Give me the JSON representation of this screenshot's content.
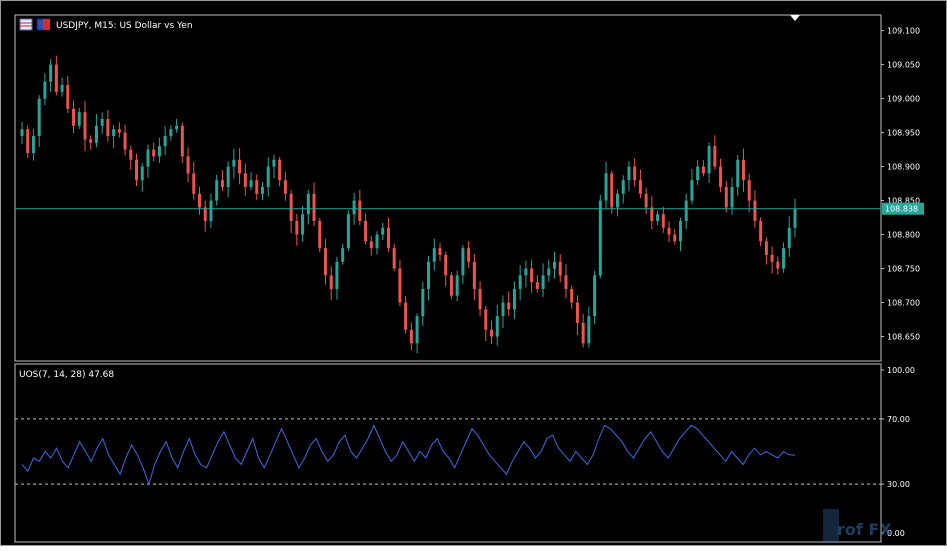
{
  "chart_data": [
    {
      "type": "candlestick",
      "title": "USDJPY, M15:  US Dollar vs Yen",
      "symbol": "USDJPY",
      "timeframe": "M15",
      "description": "US Dollar vs Yen",
      "ylim": [
        108.614,
        109.123
      ],
      "yticks": [
        109.1,
        109.05,
        109.0,
        108.95,
        108.9,
        108.85,
        108.8,
        108.75,
        108.7,
        108.65
      ],
      "ytick_labels": [
        "109.100",
        "109.050",
        "109.000",
        "108.950",
        "108.900",
        "108.850",
        "108.800",
        "108.750",
        "108.700",
        "108.650"
      ],
      "current_price": 108.838,
      "current_price_label": "108.838",
      "grid": false,
      "colors": {
        "background": "#000000",
        "bull": "#26a69a",
        "bear": "#ef5350",
        "price_line": "#26a69a",
        "axis_border": "#c0c0c0",
        "text": "#ffffff"
      },
      "closes": [
        108.955,
        108.92,
        108.945,
        109.0,
        109.025,
        109.05,
        109.01,
        109.02,
        108.985,
        108.96,
        108.98,
        108.94,
        108.935,
        108.96,
        108.97,
        108.945,
        108.955,
        108.95,
        108.925,
        108.91,
        108.88,
        108.9,
        108.925,
        108.915,
        108.93,
        108.945,
        108.955,
        108.96,
        108.915,
        108.89,
        108.86,
        108.84,
        108.82,
        108.85,
        108.88,
        108.87,
        108.9,
        108.91,
        108.89,
        108.87,
        108.88,
        108.86,
        108.87,
        108.9,
        108.91,
        108.88,
        108.86,
        108.82,
        108.8,
        108.83,
        108.86,
        108.82,
        108.78,
        108.74,
        108.72,
        108.76,
        108.78,
        108.83,
        108.85,
        108.82,
        108.79,
        108.78,
        108.8,
        108.81,
        108.78,
        108.75,
        108.7,
        108.66,
        108.64,
        108.68,
        108.72,
        108.76,
        108.78,
        108.77,
        108.74,
        108.71,
        108.74,
        108.78,
        108.76,
        108.72,
        108.69,
        108.66,
        108.65,
        108.68,
        108.7,
        108.69,
        108.72,
        108.74,
        108.75,
        108.73,
        108.72,
        108.74,
        108.75,
        108.76,
        108.74,
        108.72,
        108.7,
        108.67,
        108.64,
        108.68,
        108.74,
        108.85,
        108.89,
        108.84,
        108.86,
        108.88,
        108.9,
        108.88,
        108.86,
        108.84,
        108.82,
        108.83,
        108.81,
        108.8,
        108.79,
        108.82,
        108.85,
        108.88,
        108.9,
        108.89,
        108.93,
        108.9,
        108.87,
        108.84,
        108.87,
        108.91,
        108.88,
        108.85,
        108.82,
        108.79,
        108.77,
        108.76,
        108.75,
        108.78,
        108.81,
        108.838
      ]
    },
    {
      "type": "line",
      "title": "UOS(7, 14, 28) 47.68",
      "indicator": "UOS(7, 14, 28)",
      "last_value": 47.68,
      "ylim": [
        0,
        100
      ],
      "yticks": [
        100,
        70,
        30,
        0
      ],
      "ytick_labels": [
        "100.00",
        "70.00",
        "30.00",
        "0.00"
      ],
      "levels": [
        70,
        30
      ],
      "grid": false,
      "colors": {
        "line": "#4169e1",
        "levels": "#c0c0c0"
      },
      "values": [
        42,
        38,
        46,
        44,
        50,
        46,
        52,
        44,
        40,
        48,
        56,
        50,
        44,
        52,
        58,
        48,
        42,
        36,
        46,
        54,
        48,
        40,
        30,
        42,
        50,
        56,
        46,
        40,
        50,
        58,
        48,
        42,
        40,
        48,
        56,
        62,
        54,
        46,
        42,
        50,
        58,
        46,
        40,
        48,
        56,
        64,
        56,
        48,
        40,
        46,
        54,
        58,
        50,
        44,
        48,
        56,
        60,
        50,
        46,
        52,
        58,
        66,
        58,
        50,
        44,
        48,
        56,
        50,
        44,
        50,
        46,
        54,
        58,
        50,
        46,
        40,
        48,
        56,
        64,
        60,
        54,
        48,
        44,
        40,
        36,
        44,
        50,
        56,
        52,
        46,
        50,
        58,
        60,
        52,
        48,
        44,
        50,
        46,
        42,
        48,
        58,
        66,
        64,
        60,
        56,
        50,
        46,
        52,
        58,
        62,
        56,
        50,
        46,
        52,
        58,
        62,
        66,
        64,
        60,
        56,
        52,
        48,
        44,
        50,
        46,
        42,
        48,
        52,
        48,
        50,
        48,
        46,
        50,
        48,
        47.68
      ]
    }
  ],
  "watermark": {
    "text": "rof FX"
  }
}
